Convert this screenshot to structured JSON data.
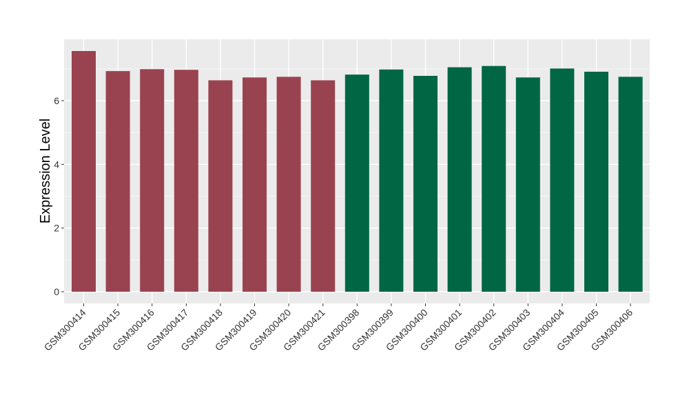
{
  "chart_data": {
    "type": "bar",
    "title": "",
    "xlabel": "",
    "ylabel": "Expression Level",
    "ylim": [
      0,
      7.95
    ],
    "yticks": [
      0,
      2,
      4,
      6
    ],
    "grid": true,
    "panel_background": "#ebebeb",
    "categories": [
      "GSM300414",
      "GSM300415",
      "GSM300416",
      "GSM300417",
      "GSM300418",
      "GSM300419",
      "GSM300420",
      "GSM300421",
      "GSM300398",
      "GSM300399",
      "GSM300400",
      "GSM300401",
      "GSM300402",
      "GSM300403",
      "GSM300404",
      "GSM300405",
      "GSM300406"
    ],
    "values": [
      7.56,
      6.93,
      6.99,
      6.97,
      6.64,
      6.73,
      6.75,
      6.64,
      6.82,
      6.98,
      6.78,
      7.05,
      7.09,
      6.73,
      7.01,
      6.91,
      6.75
    ],
    "bar_colors": [
      "#9a4350",
      "#9a4350",
      "#9a4350",
      "#9a4350",
      "#9a4350",
      "#9a4350",
      "#9a4350",
      "#9a4350",
      "#006644",
      "#006644",
      "#006644",
      "#006644",
      "#006644",
      "#006644",
      "#006644",
      "#006644",
      "#006644"
    ]
  }
}
